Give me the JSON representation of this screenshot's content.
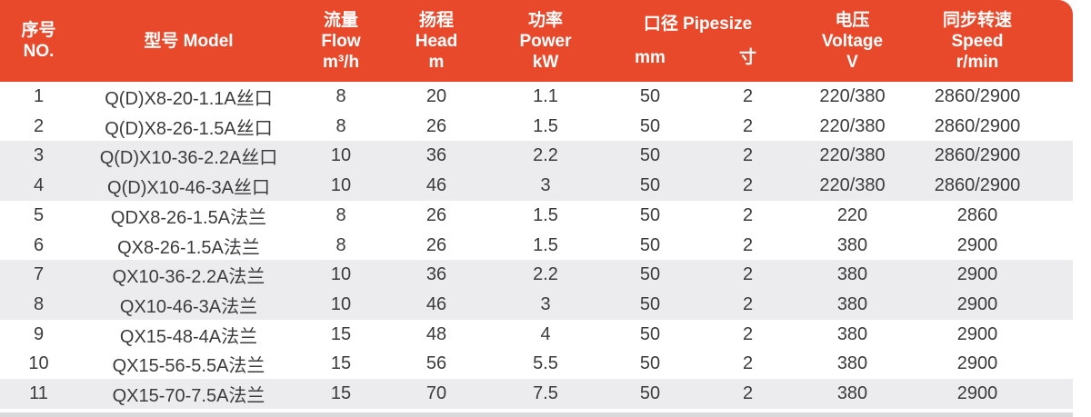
{
  "table": {
    "header": {
      "no_zh": "序号",
      "no_en": "NO.",
      "model": "型号 Model",
      "flow_zh": "流量",
      "flow_en": "Flow",
      "flow_unit": "m³/h",
      "head_zh": "扬程",
      "head_en": "Head",
      "head_unit": "m",
      "power_zh": "功率",
      "power_en": "Power",
      "power_unit": "kW",
      "pipesize_label": "口径 Pipesize",
      "pipesize_mm": "mm",
      "pipesize_cun": "寸",
      "voltage_zh": "电压",
      "voltage_en": "Voltage",
      "voltage_unit": "V",
      "speed_zh": "同步转速",
      "speed_en": "Speed",
      "speed_unit": "r/min"
    },
    "rows": [
      {
        "no": "1",
        "model": "Q(D)X8-20-1.1A丝口",
        "flow": "8",
        "head": "20",
        "power": "1.1",
        "mm": "50",
        "cun": "2",
        "voltage": "220/380",
        "speed": "2860/2900"
      },
      {
        "no": "2",
        "model": "Q(D)X8-26-1.5A丝口",
        "flow": "8",
        "head": "26",
        "power": "1.5",
        "mm": "50",
        "cun": "2",
        "voltage": "220/380",
        "speed": "2860/2900"
      },
      {
        "no": "3",
        "model": "Q(D)X10-36-2.2A丝口",
        "flow": "10",
        "head": "36",
        "power": "2.2",
        "mm": "50",
        "cun": "2",
        "voltage": "220/380",
        "speed": "2860/2900"
      },
      {
        "no": "4",
        "model": "Q(D)X10-46-3A丝口",
        "flow": "10",
        "head": "46",
        "power": "3",
        "mm": "50",
        "cun": "2",
        "voltage": "220/380",
        "speed": "2860/2900"
      },
      {
        "no": "5",
        "model": "QDX8-26-1.5A法兰",
        "flow": "8",
        "head": "26",
        "power": "1.5",
        "mm": "50",
        "cun": "2",
        "voltage": "220",
        "speed": "2860"
      },
      {
        "no": "6",
        "model": "QX8-26-1.5A法兰",
        "flow": "8",
        "head": "26",
        "power": "1.5",
        "mm": "50",
        "cun": "2",
        "voltage": "380",
        "speed": "2900"
      },
      {
        "no": "7",
        "model": "QX10-36-2.2A法兰",
        "flow": "10",
        "head": "36",
        "power": "2.2",
        "mm": "50",
        "cun": "2",
        "voltage": "380",
        "speed": "2900"
      },
      {
        "no": "8",
        "model": "QX10-46-3A法兰",
        "flow": "10",
        "head": "46",
        "power": "3",
        "mm": "50",
        "cun": "2",
        "voltage": "380",
        "speed": "2900"
      },
      {
        "no": "9",
        "model": "QX15-48-4A法兰",
        "flow": "15",
        "head": "48",
        "power": "4",
        "mm": "50",
        "cun": "2",
        "voltage": "380",
        "speed": "2900"
      },
      {
        "no": "10",
        "model": "QX15-56-5.5A法兰",
        "flow": "15",
        "head": "56",
        "power": "5.5",
        "mm": "50",
        "cun": "2",
        "voltage": "380",
        "speed": "2900"
      },
      {
        "no": "11",
        "model": "QX15-70-7.5A法兰",
        "flow": "15",
        "head": "70",
        "power": "7.5",
        "mm": "50",
        "cun": "2",
        "voltage": "380",
        "speed": "2900"
      }
    ]
  },
  "colors": {
    "header_bg": "#E9492B",
    "header_text": "#FFFFFF",
    "row_alt_bg": "#ECECEE",
    "bottom_bar": "#D9D9DB",
    "body_text": "#3B3B3D"
  }
}
